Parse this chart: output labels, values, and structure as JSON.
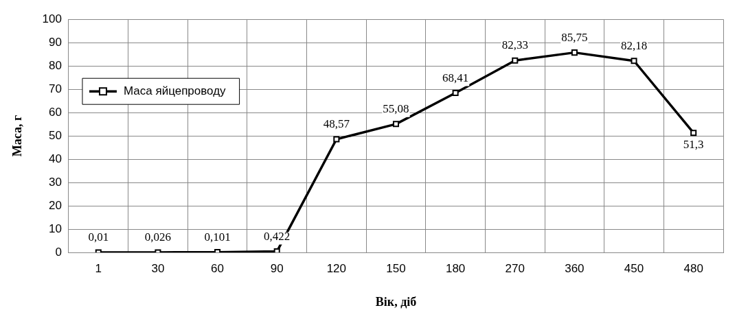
{
  "chart_data": {
    "type": "line",
    "xlabel": "Вік, діб",
    "ylabel": "Маса, г",
    "categories": [
      "1",
      "30",
      "60",
      "90",
      "120",
      "150",
      "180",
      "270",
      "360",
      "450",
      "480"
    ],
    "series": [
      {
        "name": "Маса яйцепроводу",
        "color": "#000000",
        "values": [
          0.01,
          0.026,
          0.101,
          0.422,
          48.57,
          55.08,
          68.41,
          82.33,
          85.75,
          82.18,
          51.3
        ],
        "value_labels": [
          "0,01",
          "0,026",
          "0,101",
          "0,422",
          "48,57",
          "55,08",
          "68,41",
          "82,33",
          "85,75",
          "82,18",
          "51,3"
        ]
      }
    ],
    "ylim": [
      0,
      100
    ],
    "yticks": [
      0,
      10,
      20,
      30,
      40,
      50,
      60,
      70,
      80,
      90,
      100
    ],
    "grid": true,
    "legend": "top left",
    "marker": "square",
    "line_style": "solid"
  }
}
